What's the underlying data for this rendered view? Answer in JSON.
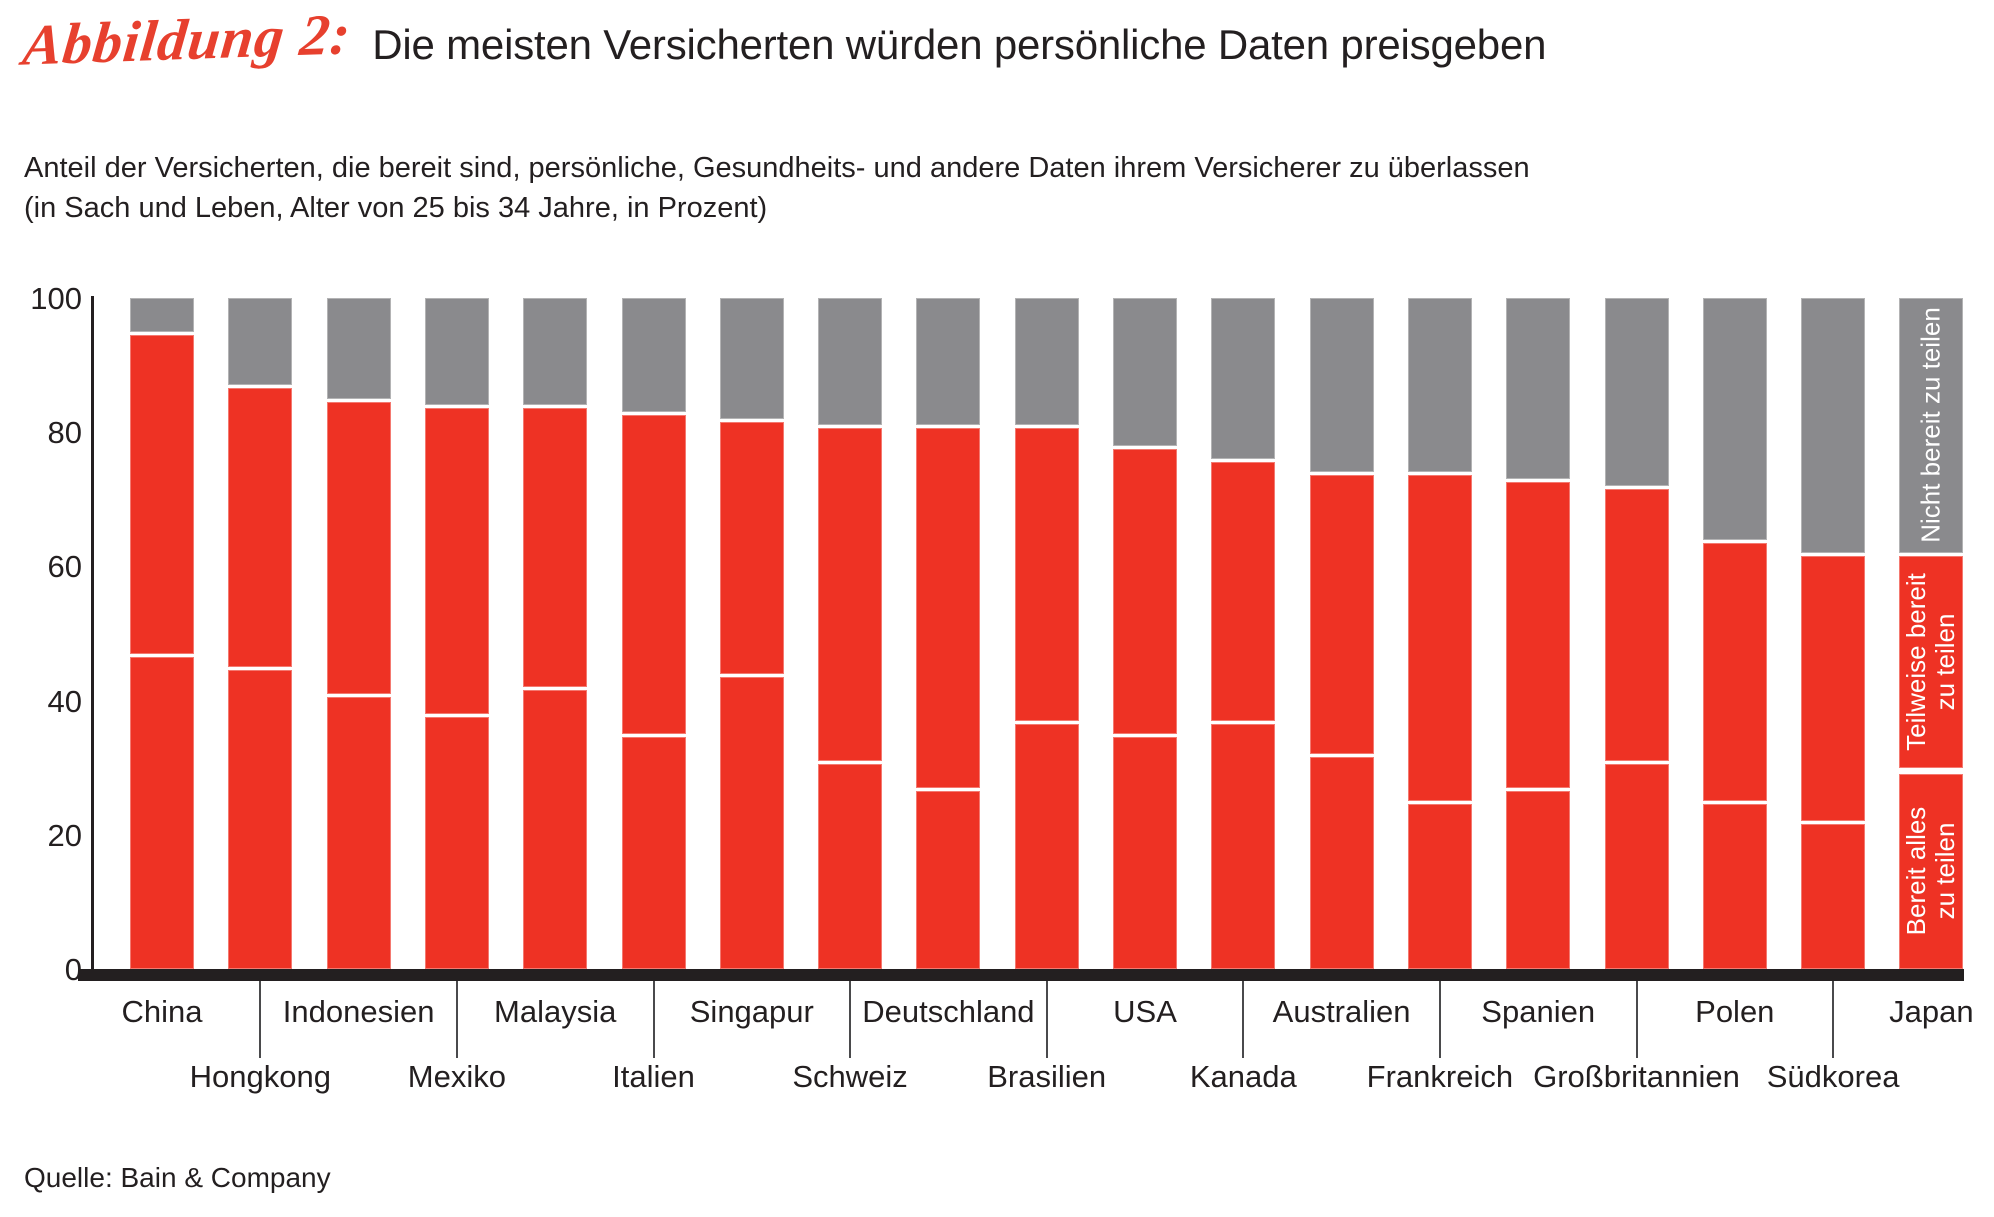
{
  "header": {
    "figure_label": "Abbildung 2:",
    "title": "Die meisten Versicherten würden persönliche Daten preisgeben",
    "subtitle_line1": "Anteil der Versicherten, die bereit sind, persönliche, Gesundheits- und andere Daten ihrem Versicherer zu überlassen",
    "subtitle_line2": "(in Sach und Leben, Alter von 25 bis 34 Jahre, in Prozent)"
  },
  "source": "Quelle: Bain & Company",
  "colors": {
    "red": "#ee3224",
    "gray": "#8a8a8d",
    "ink": "#231f20",
    "script_red": "#e7402e"
  },
  "chart_data": {
    "type": "bar",
    "stacked": true,
    "title": "Die meisten Versicherten würden persönliche Daten preisgeben",
    "ylabel": "Prozent",
    "ylim": [
      0,
      100
    ],
    "yticks": [
      0,
      20,
      40,
      60,
      80,
      100
    ],
    "grid": false,
    "legend_position": "inside-last-bar",
    "categories": [
      "China",
      "Hongkong",
      "Indonesien",
      "Mexiko",
      "Malaysia",
      "Italien",
      "Singapur",
      "Schweiz",
      "Deutschland",
      "Brasilien",
      "USA",
      "Kanada",
      "Australien",
      "Frankreich",
      "Spanien",
      "Großbritannien",
      "Polen",
      "Südkorea",
      "Japan"
    ],
    "series": [
      {
        "key": "alles",
        "name": "Bereit alles zu teilen",
        "color": "#ee3224",
        "values": [
          47,
          45,
          41,
          38,
          42,
          35,
          44,
          31,
          27,
          37,
          35,
          37,
          32,
          25,
          27,
          31,
          25,
          22,
          30
        ]
      },
      {
        "key": "teilweise",
        "name": "Teilweise bereit zu teilen",
        "color": "#ee3224",
        "values": [
          48,
          42,
          44,
          46,
          42,
          48,
          38,
          50,
          54,
          44,
          43,
          39,
          42,
          49,
          46,
          41,
          39,
          40,
          32
        ]
      },
      {
        "key": "nicht",
        "name": "Nicht bereit zu teilen",
        "color": "#8a8a8d",
        "values": [
          5,
          13,
          15,
          16,
          16,
          17,
          18,
          19,
          19,
          19,
          22,
          24,
          26,
          26,
          27,
          28,
          36,
          38,
          38
        ]
      }
    ],
    "legend_labels": {
      "nicht": "Nicht bereit zu teilen",
      "teilweise": "Teilweise bereit\nzu teilen",
      "alles": "Bereit alles\nzu teilen"
    }
  }
}
